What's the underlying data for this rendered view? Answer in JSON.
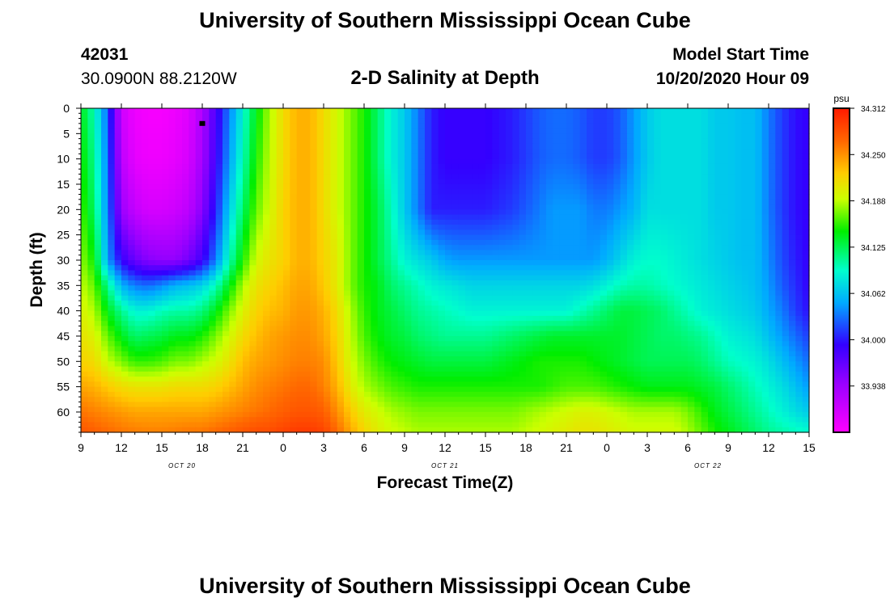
{
  "header": {
    "title_top": "University of Southern Mississippi Ocean Cube",
    "station_id": "42031",
    "station_coords": "30.0900N 88.2120W",
    "model_label": "Model Start Time",
    "model_time": "10/20/2020 Hour 09",
    "title_bottom": "University of Southern Mississippi Ocean Cube"
  },
  "chart_data": {
    "type": "heatmap",
    "title": "2-D Salinity at Depth",
    "xlabel": "Forecast Time(Z)",
    "ylabel": "Depth (ft)",
    "x_ticks": [
      "9",
      "12",
      "15",
      "18",
      "21",
      "0",
      "3",
      "6",
      "9",
      "12",
      "15",
      "18",
      "21",
      "0",
      "3",
      "6",
      "9",
      "12",
      "15"
    ],
    "x_range_hours": [
      0,
      54
    ],
    "date_labels": [
      {
        "text": "OCT 20",
        "hour": 7.5
      },
      {
        "text": "OCT 21",
        "hour": 27
      },
      {
        "text": "OCT 22",
        "hour": 46.5
      }
    ],
    "y_ticks": [
      0,
      5,
      10,
      15,
      20,
      25,
      30,
      35,
      40,
      45,
      50,
      55,
      60
    ],
    "ylim": [
      0,
      64
    ],
    "y_inverted": true,
    "colorbar": {
      "unit": "psu",
      "ticks": [
        "34.312",
        "34.250",
        "34.188",
        "34.125",
        "34.062",
        "34.000",
        "33.938"
      ],
      "range": [
        33.9,
        34.312
      ]
    },
    "marker": {
      "hour": 9,
      "depth": 3
    },
    "salinity_profile": {
      "depths": [
        0,
        10,
        20,
        30,
        35,
        40,
        45,
        50,
        55,
        60,
        64
      ],
      "hours": [
        0,
        1,
        2,
        3,
        4,
        5,
        6,
        7,
        8,
        9,
        10,
        11,
        12,
        13,
        14,
        15,
        16,
        17,
        18,
        19,
        20,
        21,
        22,
        23,
        24,
        25,
        26,
        27,
        28,
        29,
        30,
        31,
        32,
        33,
        34,
        35,
        36,
        37,
        38,
        39,
        40,
        41,
        42,
        43,
        44,
        45,
        46,
        47,
        48,
        49,
        50,
        51,
        52,
        53,
        54
      ],
      "values": [
        [
          34.15,
          34.11,
          34.04,
          33.93,
          33.91,
          33.905,
          33.905,
          33.91,
          33.92,
          33.95,
          34.0,
          34.05,
          34.1,
          34.15,
          34.19,
          34.22,
          34.24,
          34.24,
          34.22,
          34.2,
          34.18,
          34.16,
          34.13,
          34.1,
          34.08,
          34.05,
          34.02,
          34.01,
          34.01,
          34.01,
          34.01,
          34.015,
          34.02,
          34.03,
          34.04,
          34.045,
          34.045,
          34.04,
          34.03,
          34.03,
          34.04,
          34.06,
          34.08,
          34.09,
          34.09,
          34.09,
          34.09,
          34.08,
          34.08,
          34.075,
          34.075,
          34.05,
          34.03,
          34.015,
          34.01
        ],
        [
          34.16,
          34.12,
          34.045,
          33.94,
          33.915,
          33.91,
          33.91,
          33.915,
          33.925,
          33.955,
          34.005,
          34.06,
          34.11,
          34.16,
          34.195,
          34.22,
          34.24,
          34.24,
          34.22,
          34.2,
          34.18,
          34.16,
          34.13,
          34.1,
          34.08,
          34.05,
          34.02,
          34.01,
          34.01,
          34.01,
          34.01,
          34.015,
          34.02,
          34.03,
          34.04,
          34.045,
          34.045,
          34.04,
          34.03,
          34.03,
          34.04,
          34.06,
          34.08,
          34.09,
          34.09,
          34.09,
          34.09,
          34.08,
          34.08,
          34.075,
          34.075,
          34.05,
          34.03,
          34.015,
          34.01
        ],
        [
          34.17,
          34.13,
          34.05,
          33.96,
          33.935,
          33.925,
          33.925,
          33.93,
          33.94,
          33.97,
          34.02,
          34.08,
          34.13,
          34.175,
          34.2,
          34.225,
          34.24,
          34.24,
          34.22,
          34.2,
          34.18,
          34.16,
          34.14,
          34.11,
          34.08,
          34.05,
          34.02,
          34.02,
          34.02,
          34.02,
          34.02,
          34.025,
          34.03,
          34.04,
          34.05,
          34.06,
          34.06,
          34.06,
          34.05,
          34.05,
          34.06,
          34.07,
          34.09,
          34.09,
          34.09,
          34.09,
          34.09,
          34.08,
          34.08,
          34.075,
          34.075,
          34.05,
          34.03,
          34.015,
          34.01
        ],
        [
          34.185,
          34.155,
          34.06,
          34.01,
          33.985,
          33.97,
          33.965,
          33.965,
          33.98,
          34.005,
          34.05,
          34.11,
          34.16,
          34.2,
          34.215,
          34.225,
          34.24,
          34.24,
          34.225,
          34.21,
          34.18,
          34.16,
          34.14,
          34.12,
          34.1,
          34.09,
          34.08,
          34.065,
          34.06,
          34.06,
          34.06,
          34.06,
          34.06,
          34.06,
          34.06,
          34.06,
          34.06,
          34.06,
          34.06,
          34.07,
          34.085,
          34.1,
          34.105,
          34.105,
          34.1,
          34.095,
          34.09,
          34.085,
          34.08,
          34.075,
          34.075,
          34.055,
          34.035,
          34.02,
          34.01
        ],
        [
          34.195,
          34.175,
          34.12,
          34.07,
          34.05,
          34.045,
          34.055,
          34.07,
          34.075,
          34.085,
          34.11,
          34.15,
          34.19,
          34.215,
          34.225,
          34.235,
          34.245,
          34.245,
          34.23,
          34.21,
          34.18,
          34.16,
          34.15,
          34.13,
          34.12,
          34.11,
          34.1,
          34.095,
          34.09,
          34.085,
          34.085,
          34.085,
          34.085,
          34.085,
          34.085,
          34.085,
          34.085,
          34.085,
          34.09,
          34.1,
          34.11,
          34.115,
          34.115,
          34.11,
          34.105,
          34.1,
          34.095,
          34.09,
          34.085,
          34.08,
          34.075,
          34.06,
          34.04,
          34.025,
          34.01
        ],
        [
          34.205,
          34.19,
          34.15,
          34.12,
          34.1,
          34.1,
          34.11,
          34.115,
          34.115,
          34.125,
          34.15,
          34.18,
          34.205,
          34.225,
          34.235,
          34.24,
          34.25,
          34.25,
          34.24,
          34.22,
          34.19,
          34.165,
          34.15,
          34.14,
          34.13,
          34.12,
          34.115,
          34.11,
          34.105,
          34.1,
          34.1,
          34.1,
          34.1,
          34.1,
          34.1,
          34.1,
          34.1,
          34.11,
          34.12,
          34.13,
          34.14,
          34.14,
          34.135,
          34.13,
          34.12,
          34.11,
          34.1,
          34.095,
          34.09,
          34.085,
          34.08,
          34.065,
          34.05,
          34.03,
          34.015
        ],
        [
          34.215,
          34.205,
          34.175,
          34.15,
          34.13,
          34.135,
          34.14,
          34.15,
          34.15,
          34.16,
          34.18,
          34.2,
          34.22,
          34.235,
          34.245,
          34.25,
          34.255,
          34.255,
          34.245,
          34.225,
          34.195,
          34.17,
          34.155,
          34.145,
          34.14,
          34.13,
          34.125,
          34.12,
          34.12,
          34.12,
          34.12,
          34.125,
          34.13,
          34.135,
          34.14,
          34.145,
          34.145,
          34.145,
          34.145,
          34.145,
          34.145,
          34.14,
          34.135,
          34.13,
          34.13,
          34.125,
          34.12,
          34.11,
          34.1,
          34.095,
          34.09,
          34.075,
          34.06,
          34.045,
          34.03
        ],
        [
          34.225,
          34.22,
          34.195,
          34.18,
          34.165,
          34.165,
          34.17,
          34.18,
          34.18,
          34.19,
          34.2,
          34.215,
          34.235,
          34.245,
          34.25,
          34.255,
          34.26,
          34.26,
          34.255,
          34.23,
          34.2,
          34.18,
          34.165,
          34.155,
          34.15,
          34.145,
          34.14,
          34.14,
          34.14,
          34.14,
          34.14,
          34.145,
          34.15,
          34.155,
          34.16,
          34.16,
          34.16,
          34.16,
          34.155,
          34.15,
          34.145,
          34.14,
          34.135,
          34.135,
          34.135,
          34.135,
          34.13,
          34.12,
          34.11,
          34.105,
          34.1,
          34.09,
          34.075,
          34.06,
          34.045
        ],
        [
          34.245,
          34.24,
          34.23,
          34.22,
          34.215,
          34.215,
          34.215,
          34.22,
          34.22,
          34.22,
          34.225,
          34.235,
          34.245,
          34.255,
          34.26,
          34.265,
          34.27,
          34.27,
          34.26,
          34.24,
          34.21,
          34.19,
          34.18,
          34.17,
          34.165,
          34.16,
          34.16,
          34.16,
          34.16,
          34.16,
          34.16,
          34.16,
          34.16,
          34.16,
          34.16,
          34.165,
          34.17,
          34.17,
          34.17,
          34.165,
          34.16,
          34.155,
          34.15,
          34.15,
          34.15,
          34.15,
          34.145,
          34.14,
          34.13,
          34.12,
          34.11,
          34.1,
          34.09,
          34.075,
          34.06
        ],
        [
          34.265,
          34.26,
          34.255,
          34.25,
          34.245,
          34.245,
          34.245,
          34.245,
          34.245,
          34.245,
          34.25,
          34.255,
          34.26,
          34.265,
          34.27,
          34.275,
          34.28,
          34.28,
          34.275,
          34.255,
          34.23,
          34.21,
          34.2,
          34.19,
          34.185,
          34.18,
          34.18,
          34.18,
          34.18,
          34.18,
          34.18,
          34.18,
          34.18,
          34.185,
          34.19,
          34.195,
          34.2,
          34.205,
          34.205,
          34.2,
          34.195,
          34.19,
          34.19,
          34.19,
          34.19,
          34.18,
          34.165,
          34.15,
          34.14,
          34.13,
          34.12,
          34.11,
          34.1,
          34.09,
          34.08
        ],
        [
          34.28,
          34.275,
          34.27,
          34.265,
          34.262,
          34.26,
          34.26,
          34.262,
          34.265,
          34.265,
          34.27,
          34.275,
          34.28,
          34.285,
          34.285,
          34.29,
          34.295,
          34.295,
          34.29,
          34.27,
          34.245,
          34.225,
          34.21,
          34.2,
          34.195,
          34.19,
          34.19,
          34.19,
          34.19,
          34.19,
          34.19,
          34.19,
          34.19,
          34.195,
          34.2,
          34.205,
          34.21,
          34.215,
          34.215,
          34.21,
          34.205,
          34.2,
          34.2,
          34.2,
          34.2,
          34.19,
          34.175,
          34.16,
          34.15,
          34.14,
          34.13,
          34.12,
          34.115,
          34.11,
          34.105
        ]
      ]
    }
  }
}
